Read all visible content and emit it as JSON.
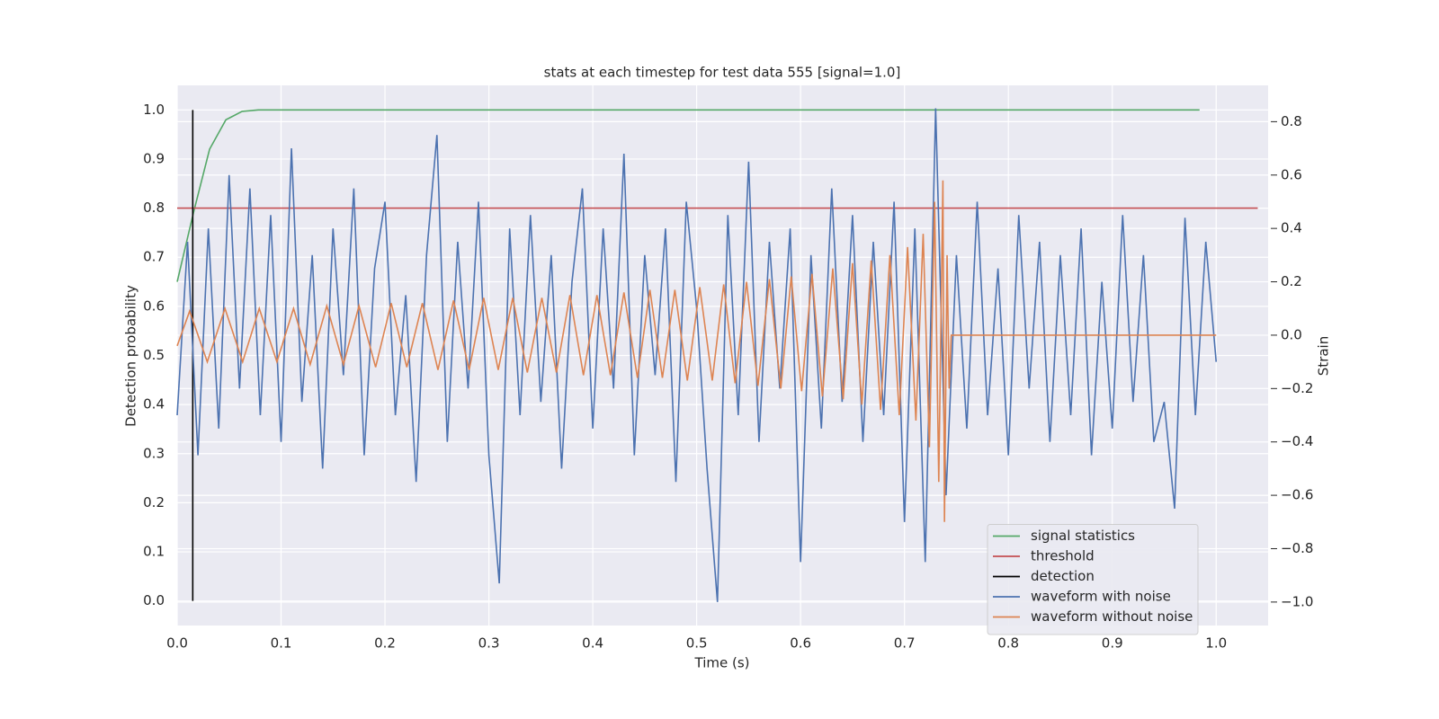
{
  "chart_data": {
    "type": "line",
    "title": "stats at each timestep for test data 555 [signal=1.0]",
    "xlabel": "Time (s)",
    "ylabel": "Detection probability",
    "y2label": "Strain",
    "xlim": [
      0,
      1.05
    ],
    "ylim": [
      -0.05,
      1.05
    ],
    "y2lim": [
      -1.088,
      0.936
    ],
    "xticks": [
      {
        "value": 0,
        "label": "0.0"
      },
      0.1,
      0.2,
      0.3,
      0.4,
      0.5,
      0.6,
      0.7,
      0.8,
      0.9,
      {
        "value": 1,
        "label": "1.0"
      }
    ],
    "yticks": [
      {
        "value": 0,
        "label": "0.0"
      },
      0.1,
      0.2,
      0.3,
      0.4,
      0.5,
      0.6,
      0.7,
      0.8,
      0.9,
      {
        "value": 1,
        "label": "1.0"
      }
    ],
    "y2ticks": [
      {
        "value": -1,
        "label": "−1.0"
      },
      {
        "value": -0.8,
        "label": "−0.8"
      },
      {
        "value": -0.6,
        "label": "−0.6"
      },
      {
        "value": -0.4,
        "label": "−0.4"
      },
      {
        "value": -0.2,
        "label": "−0.2"
      },
      {
        "value": 0,
        "label": "0.0"
      },
      0.2,
      0.4,
      0.6,
      0.8
    ],
    "grid": true,
    "legend": "lower right",
    "series": [
      {
        "name": "signal statistics",
        "color": "#55a868",
        "x": [
          0,
          0.0156,
          0.0312,
          0.0469,
          0.0625,
          0.0781,
          0.1,
          0.984
        ],
        "values": [
          0.65,
          0.79,
          0.92,
          0.98,
          0.997,
          1.0,
          1.0,
          1.0
        ]
      },
      {
        "name": "threshold",
        "color": "#c44e52",
        "x": [
          0,
          1.04
        ],
        "values": [
          0.8,
          0.8
        ]
      },
      {
        "name": "detection",
        "color": "#000000",
        "x": [
          0.015,
          0.015
        ],
        "values": [
          0,
          1
        ]
      },
      {
        "name": "waveform with noise",
        "color": "#4c72b0",
        "axis": "y2",
        "x": [
          0,
          0.01,
          0.02,
          0.03,
          0.04,
          0.05,
          0.06,
          0.07,
          0.08,
          0.09,
          0.1,
          0.11,
          0.12,
          0.13,
          0.14,
          0.15,
          0.16,
          0.17,
          0.18,
          0.19,
          0.2,
          0.21,
          0.22,
          0.23,
          0.24,
          0.25,
          0.26,
          0.27,
          0.28,
          0.29,
          0.3,
          0.31,
          0.32,
          0.33,
          0.34,
          0.35,
          0.36,
          0.37,
          0.38,
          0.39,
          0.4,
          0.41,
          0.42,
          0.43,
          0.44,
          0.45,
          0.46,
          0.47,
          0.48,
          0.49,
          0.5,
          0.51,
          0.52,
          0.53,
          0.54,
          0.55,
          0.56,
          0.57,
          0.58,
          0.59,
          0.6,
          0.61,
          0.62,
          0.63,
          0.64,
          0.65,
          0.66,
          0.67,
          0.68,
          0.69,
          0.7,
          0.71,
          0.72,
          0.73,
          0.74,
          0.75,
          0.76,
          0.77,
          0.78,
          0.79,
          0.8,
          0.81,
          0.82,
          0.83,
          0.84,
          0.85,
          0.86,
          0.87,
          0.88,
          0.89,
          0.9,
          0.91,
          0.92,
          0.93,
          0.94,
          0.95,
          0.96,
          0.97,
          0.98,
          0.99,
          1.0
        ],
        "values": [
          -0.3,
          0.35,
          -0.45,
          0.4,
          -0.35,
          0.6,
          -0.2,
          0.55,
          -0.3,
          0.45,
          -0.4,
          0.7,
          -0.25,
          0.3,
          -0.5,
          0.4,
          -0.15,
          0.55,
          -0.45,
          0.25,
          0.5,
          -0.3,
          0.15,
          -0.55,
          0.3,
          0.75,
          -0.4,
          0.35,
          -0.2,
          0.5,
          -0.45,
          -0.93,
          0.4,
          -0.3,
          0.45,
          -0.25,
          0.3,
          -0.5,
          0.2,
          0.55,
          -0.35,
          0.4,
          -0.2,
          0.68,
          -0.45,
          0.3,
          -0.15,
          0.4,
          -0.55,
          0.5,
          0.1,
          -0.5,
          -1.0,
          0.45,
          -0.3,
          0.65,
          -0.4,
          0.35,
          -0.2,
          0.4,
          -0.85,
          0.3,
          -0.35,
          0.55,
          -0.25,
          0.45,
          -0.4,
          0.35,
          -0.3,
          0.5,
          -0.7,
          0.4,
          -0.85,
          0.85,
          -0.6,
          0.3,
          -0.35,
          0.5,
          -0.3,
          0.25,
          -0.45,
          0.45,
          -0.2,
          0.35,
          -0.4,
          0.3,
          -0.3,
          0.4,
          -0.45,
          0.2,
          -0.35,
          0.45,
          -0.25,
          0.3,
          -0.4,
          -0.25,
          -0.65,
          0.44,
          -0.3,
          0.35,
          -0.1
        ]
      },
      {
        "name": "waveform without noise",
        "color": "#dd8452",
        "axis": "y2",
        "x": [
          0,
          0.012,
          0.029,
          0.046,
          0.063,
          0.079,
          0.096,
          0.112,
          0.128,
          0.144,
          0.16,
          0.175,
          0.191,
          0.206,
          0.221,
          0.236,
          0.251,
          0.266,
          0.281,
          0.295,
          0.309,
          0.323,
          0.337,
          0.351,
          0.365,
          0.378,
          0.391,
          0.404,
          0.417,
          0.43,
          0.443,
          0.455,
          0.467,
          0.479,
          0.491,
          0.503,
          0.515,
          0.526,
          0.537,
          0.548,
          0.559,
          0.57,
          0.581,
          0.591,
          0.601,
          0.611,
          0.621,
          0.631,
          0.641,
          0.65,
          0.659,
          0.668,
          0.677,
          0.686,
          0.695,
          0.703,
          0.711,
          0.718,
          0.724,
          0.729,
          0.733,
          0.737,
          0.7385,
          0.741,
          0.743,
          0.745,
          1.0
        ],
        "values": [
          -0.04,
          0.09,
          -0.1,
          0.1,
          -0.1,
          0.1,
          -0.1,
          0.1,
          -0.11,
          0.11,
          -0.11,
          0.11,
          -0.12,
          0.12,
          -0.12,
          0.12,
          -0.13,
          0.13,
          -0.13,
          0.14,
          -0.13,
          0.14,
          -0.14,
          0.14,
          -0.14,
          0.15,
          -0.15,
          0.15,
          -0.15,
          0.16,
          -0.16,
          0.17,
          -0.16,
          0.17,
          -0.17,
          0.18,
          -0.17,
          0.19,
          -0.18,
          0.2,
          -0.19,
          0.21,
          -0.2,
          0.22,
          -0.21,
          0.23,
          -0.23,
          0.25,
          -0.24,
          0.27,
          -0.26,
          0.28,
          -0.28,
          0.3,
          -0.3,
          0.33,
          -0.32,
          0.38,
          -0.42,
          0.5,
          -0.55,
          0.58,
          -0.7,
          0.3,
          -0.2,
          0.0,
          0.0
        ]
      }
    ]
  }
}
